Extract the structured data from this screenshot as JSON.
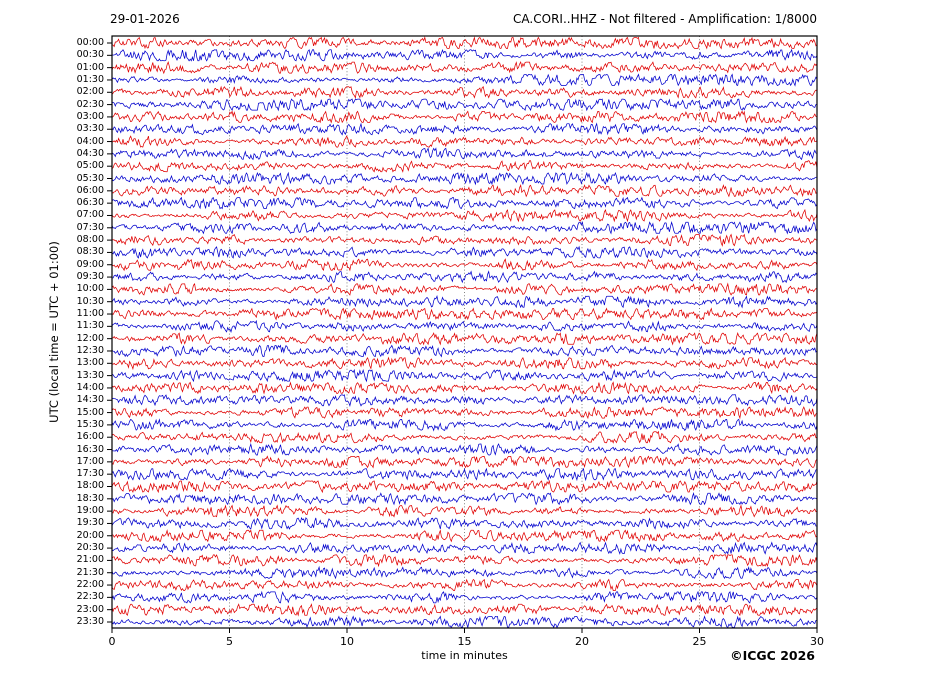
{
  "figure": {
    "copyright": "©ICGC 2026"
  },
  "chart_data": {
    "type": "line",
    "variant": "seismogram-helicorder",
    "title_left": "29-01-2026",
    "title_right": "CA.CORI..HHZ - Not filtered - Amplification: 1/8000",
    "station": "CA.CORI..HHZ",
    "filter": "Not filtered",
    "amplification": "1/8000",
    "date": "29-01-2026",
    "xlabel": "time in minutes",
    "ylabel": "UTC (local time = UTC + 01:00)",
    "xlim": [
      0,
      30
    ],
    "x_ticks": [
      0,
      5,
      10,
      15,
      20,
      25,
      30
    ],
    "grid_minutes": [
      5,
      10,
      15,
      20,
      25
    ],
    "grid_style": "vertical dotted gray lines",
    "legend": "none",
    "minutes_per_row": 30,
    "rows": 48,
    "row_labels": [
      "00:00",
      "00:30",
      "01:00",
      "01:30",
      "02:00",
      "02:30",
      "03:00",
      "03:30",
      "04:00",
      "04:30",
      "05:00",
      "05:30",
      "06:00",
      "06:30",
      "07:00",
      "07:30",
      "08:00",
      "08:30",
      "09:00",
      "09:30",
      "10:00",
      "10:30",
      "11:00",
      "11:30",
      "12:00",
      "12:30",
      "13:00",
      "13:30",
      "14:00",
      "14:30",
      "15:00",
      "15:30",
      "16:00",
      "16:30",
      "17:00",
      "17:30",
      "18:00",
      "18:30",
      "19:00",
      "19:30",
      "20:00",
      "20:30",
      "21:00",
      "21:30",
      "22:00",
      "22:30",
      "23:00",
      "23:30"
    ],
    "row_colors_alternate": [
      "#e00000",
      "#0000cd"
    ],
    "frame_color": "#000000",
    "grid_color": "#666666",
    "trace_description": "continuous unfiltered broadband seismic noise; alternating red/blue 30-minute traces with intermittent small amplitude bursts, no large events",
    "noise_seed": 1000
  }
}
